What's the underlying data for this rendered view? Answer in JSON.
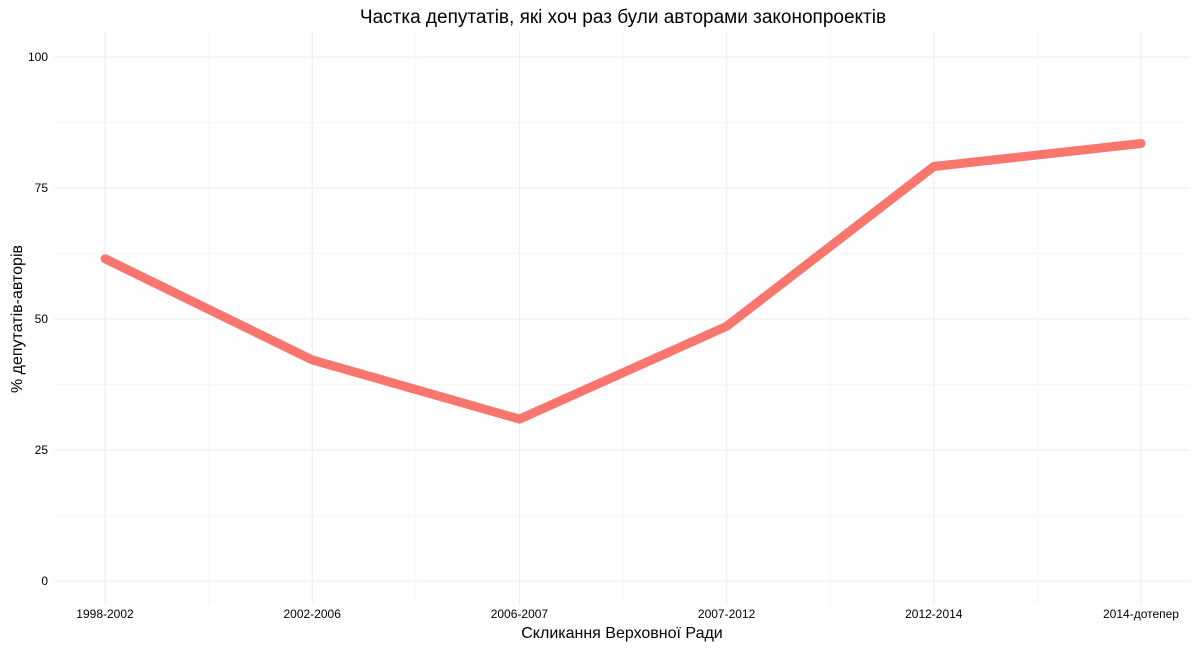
{
  "chart_data": {
    "type": "line",
    "title": "Частка депутатів, які хоч раз були авторами законопроектів",
    "xlabel": "Скликання Верховної Ради",
    "ylabel": "% депутатів-авторів",
    "categories": [
      "1998-2002",
      "2002-2006",
      "2006-2007",
      "2007-2012",
      "2012-2014",
      "2014-дотепер"
    ],
    "series": [
      {
        "values": [
          61.5,
          42.2,
          30.9,
          48.6,
          79.1,
          83.5
        ],
        "color": "#F8766D"
      }
    ],
    "ylim": [
      0,
      100
    ],
    "yticks": [
      0,
      25,
      50,
      75,
      100
    ],
    "grid": true,
    "legend": "none"
  }
}
